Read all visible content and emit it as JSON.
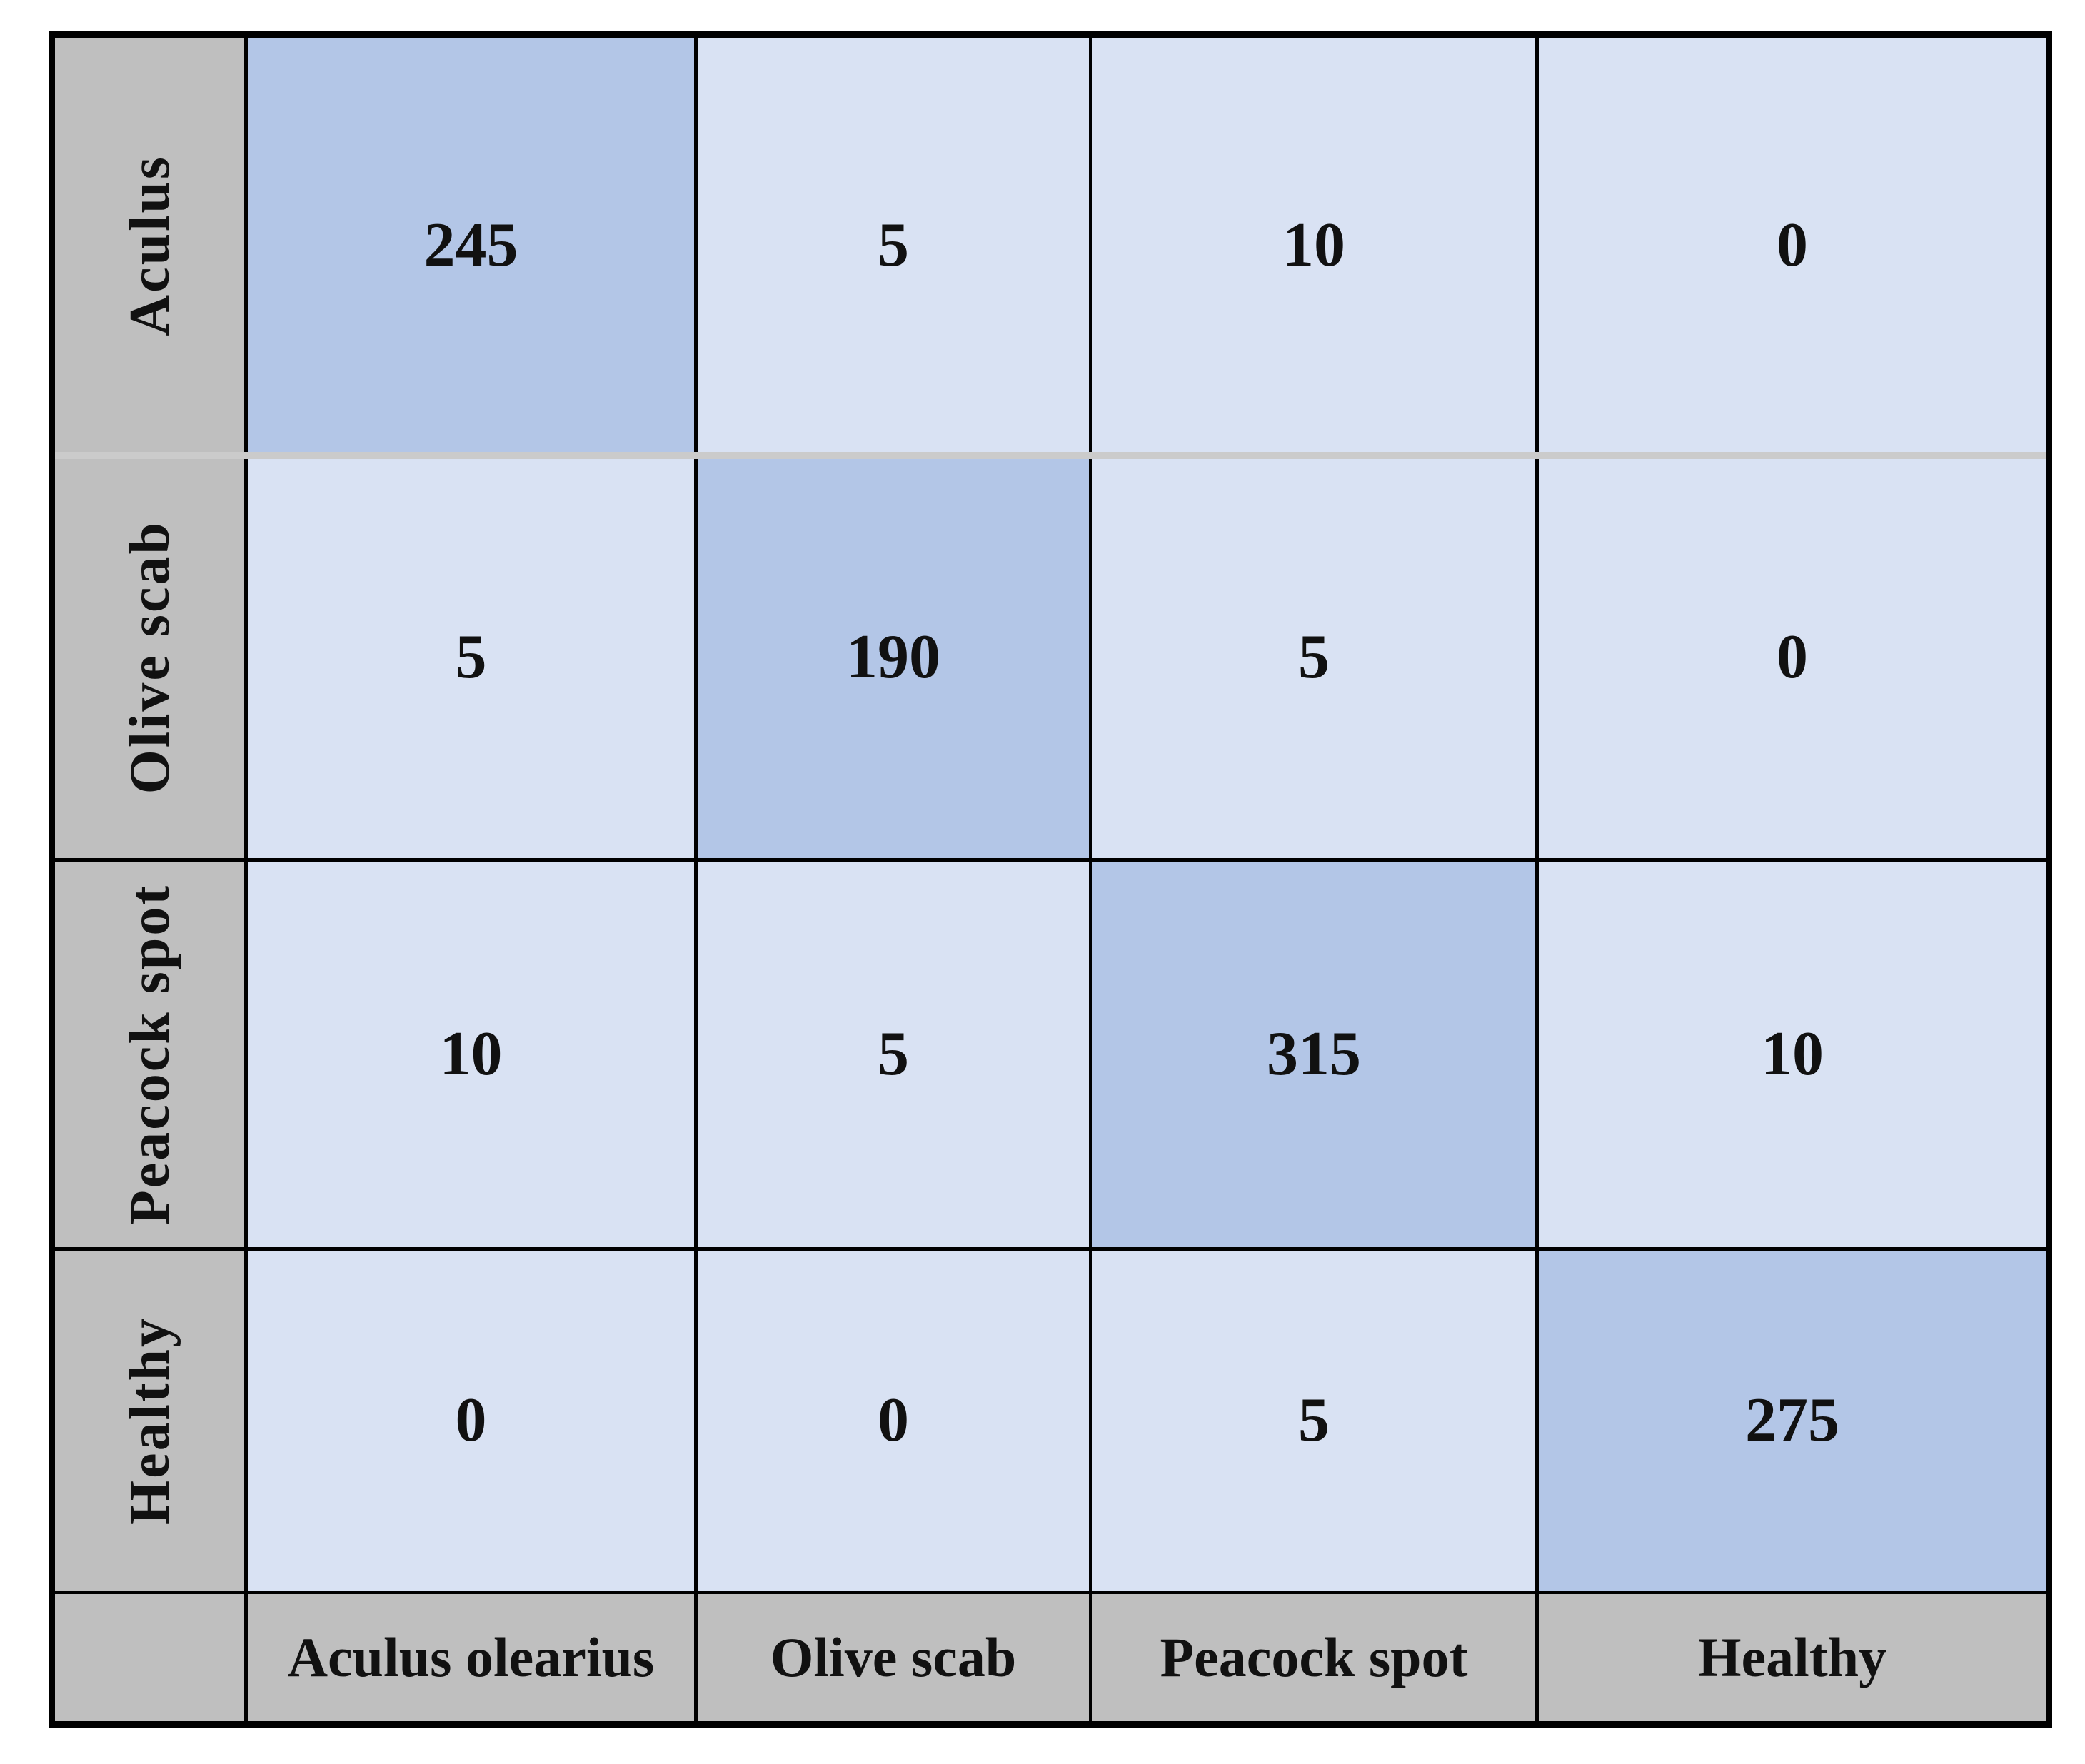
{
  "chart_data": {
    "type": "heatmap",
    "title": "",
    "description_label": "confusion-matrix",
    "rows": [
      "Aculus",
      "Olive scab",
      "Peacock spot",
      "Healthy"
    ],
    "columns": [
      "Aculus olearius",
      "Olive scab",
      "Peacock spot",
      "Healthy"
    ],
    "values": [
      [
        245,
        5,
        10,
        0
      ],
      [
        5,
        190,
        5,
        0
      ],
      [
        10,
        5,
        315,
        10
      ],
      [
        0,
        0,
        5,
        275
      ]
    ],
    "diagonal_highlighted": true,
    "legend_position": "none",
    "grid": true,
    "colors": {
      "off_diagonal_cell": "#d9e2f3",
      "diagonal_cell": "#b3c6e7",
      "header_cell": "#bfbfbf",
      "grid_border": "#000000",
      "first_row_separator": "#cbcbcb",
      "text": "#111111",
      "page_background": "#ffffff"
    }
  }
}
